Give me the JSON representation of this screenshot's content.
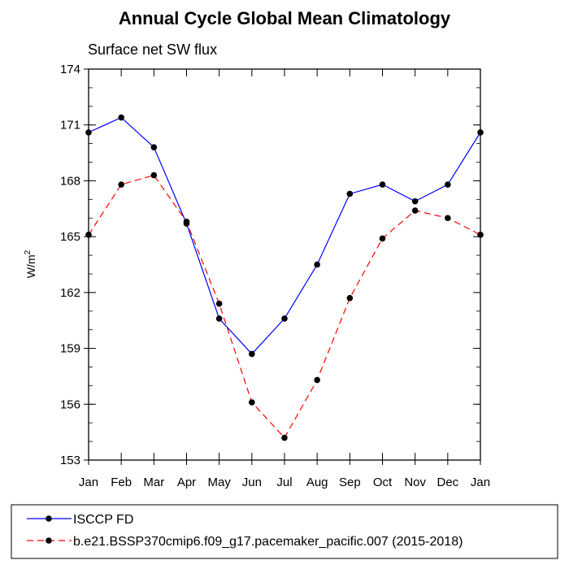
{
  "chart_data": {
    "type": "line",
    "title": "Annual Cycle Global Mean Climatology",
    "subtitle": "Surface net SW flux",
    "ylabel": "W/m",
    "ylabel_superscript": "2",
    "xlabel": "",
    "categories": [
      "Jan",
      "Feb",
      "Mar",
      "Apr",
      "May",
      "Jun",
      "Jul",
      "Aug",
      "Sep",
      "Oct",
      "Nov",
      "Dec",
      "Jan"
    ],
    "ylim": [
      153,
      174
    ],
    "yticks": [
      "153",
      "156",
      "159",
      "162",
      "165",
      "168",
      "171",
      "174"
    ],
    "grid": false,
    "legend_position": "bottom",
    "series": [
      {
        "name": "ISCCP FD",
        "color": "#0000ff",
        "line_style": "solid",
        "values": [
          170.6,
          171.4,
          169.8,
          165.7,
          160.6,
          158.7,
          160.6,
          163.5,
          167.3,
          167.8,
          166.9,
          167.8,
          170.6
        ]
      },
      {
        "name": "b.e21.BSSP370cmip6.f09_g17.pacemaker_pacific.007 (2015-2018)",
        "color": "#ff0000",
        "line_style": "dashed",
        "values": [
          165.1,
          167.8,
          168.3,
          165.8,
          161.4,
          156.1,
          154.2,
          157.3,
          161.7,
          164.9,
          166.4,
          166.0,
          165.1
        ]
      }
    ]
  }
}
